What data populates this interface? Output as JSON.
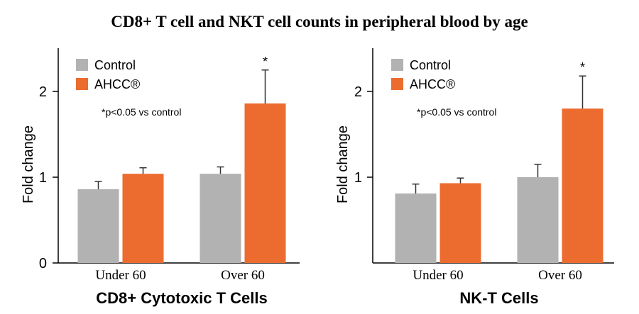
{
  "title": "CD8+ T cell and NKT cell counts in peripheral blood by age",
  "colors": {
    "control": "#b2b2b2",
    "ahcc": "#ec6c2f"
  },
  "chart_data": [
    {
      "type": "bar",
      "title": "CD8+ Cytotoxic T Cells",
      "ylabel": "Fold change",
      "ylim": [
        0,
        2.4
      ],
      "yticks": [
        "0",
        "1",
        "2"
      ],
      "categories": [
        "Under 60",
        "Over 60"
      ],
      "legend": [
        "Control",
        "AHCC®"
      ],
      "legend_position": "top-left",
      "note": "*p<0.05 vs control",
      "series": [
        {
          "name": "Control",
          "values": [
            0.86,
            1.04
          ],
          "errors": [
            0.09,
            0.08
          ]
        },
        {
          "name": "AHCC®",
          "values": [
            1.04,
            1.86
          ],
          "errors": [
            0.07,
            0.39
          ]
        }
      ],
      "significance": [
        "",
        "*"
      ]
    },
    {
      "type": "bar",
      "title": "NK-T Cells",
      "ylabel": "Fold change",
      "ylim": [
        0,
        2.4
      ],
      "yticks": [
        "1",
        "2"
      ],
      "categories": [
        "Under 60",
        "Over 60"
      ],
      "legend": [
        "Control",
        "AHCC®"
      ],
      "legend_position": "top-left",
      "note": "*p<0.05 vs control",
      "series": [
        {
          "name": "Control",
          "values": [
            0.81,
            1.0
          ],
          "errors": [
            0.11,
            0.15
          ]
        },
        {
          "name": "AHCC®",
          "values": [
            0.93,
            1.8
          ],
          "errors": [
            0.06,
            0.38
          ]
        }
      ],
      "significance": [
        "",
        "*"
      ]
    }
  ]
}
